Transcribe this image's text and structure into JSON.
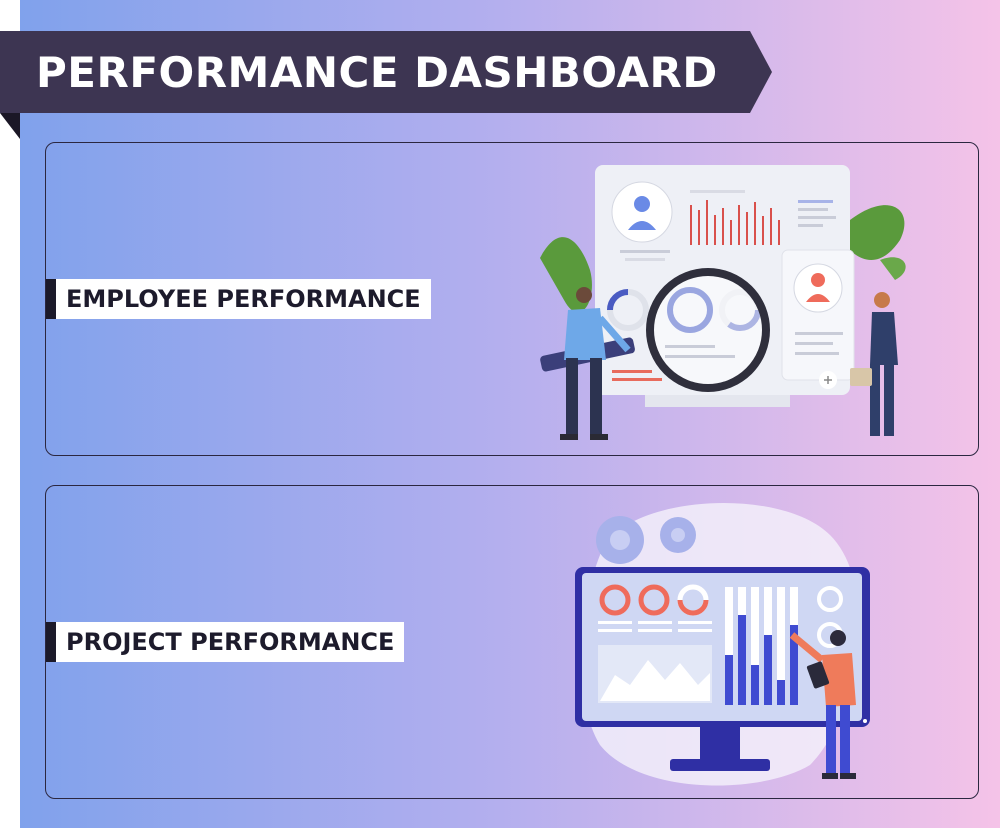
{
  "header": {
    "title": "PERFORMANCE DASHBOARD"
  },
  "sections": [
    {
      "label": "EMPLOYEE PERFORMANCE"
    },
    {
      "label": "PROJECT PERFORMANCE"
    }
  ],
  "colors": {
    "banner": "#3d3552",
    "gradient_left": "#7ea1ec",
    "gradient_right": "#f5c3e8",
    "accent_red": "#ef6b5b",
    "accent_blue": "#3f4bd1"
  }
}
